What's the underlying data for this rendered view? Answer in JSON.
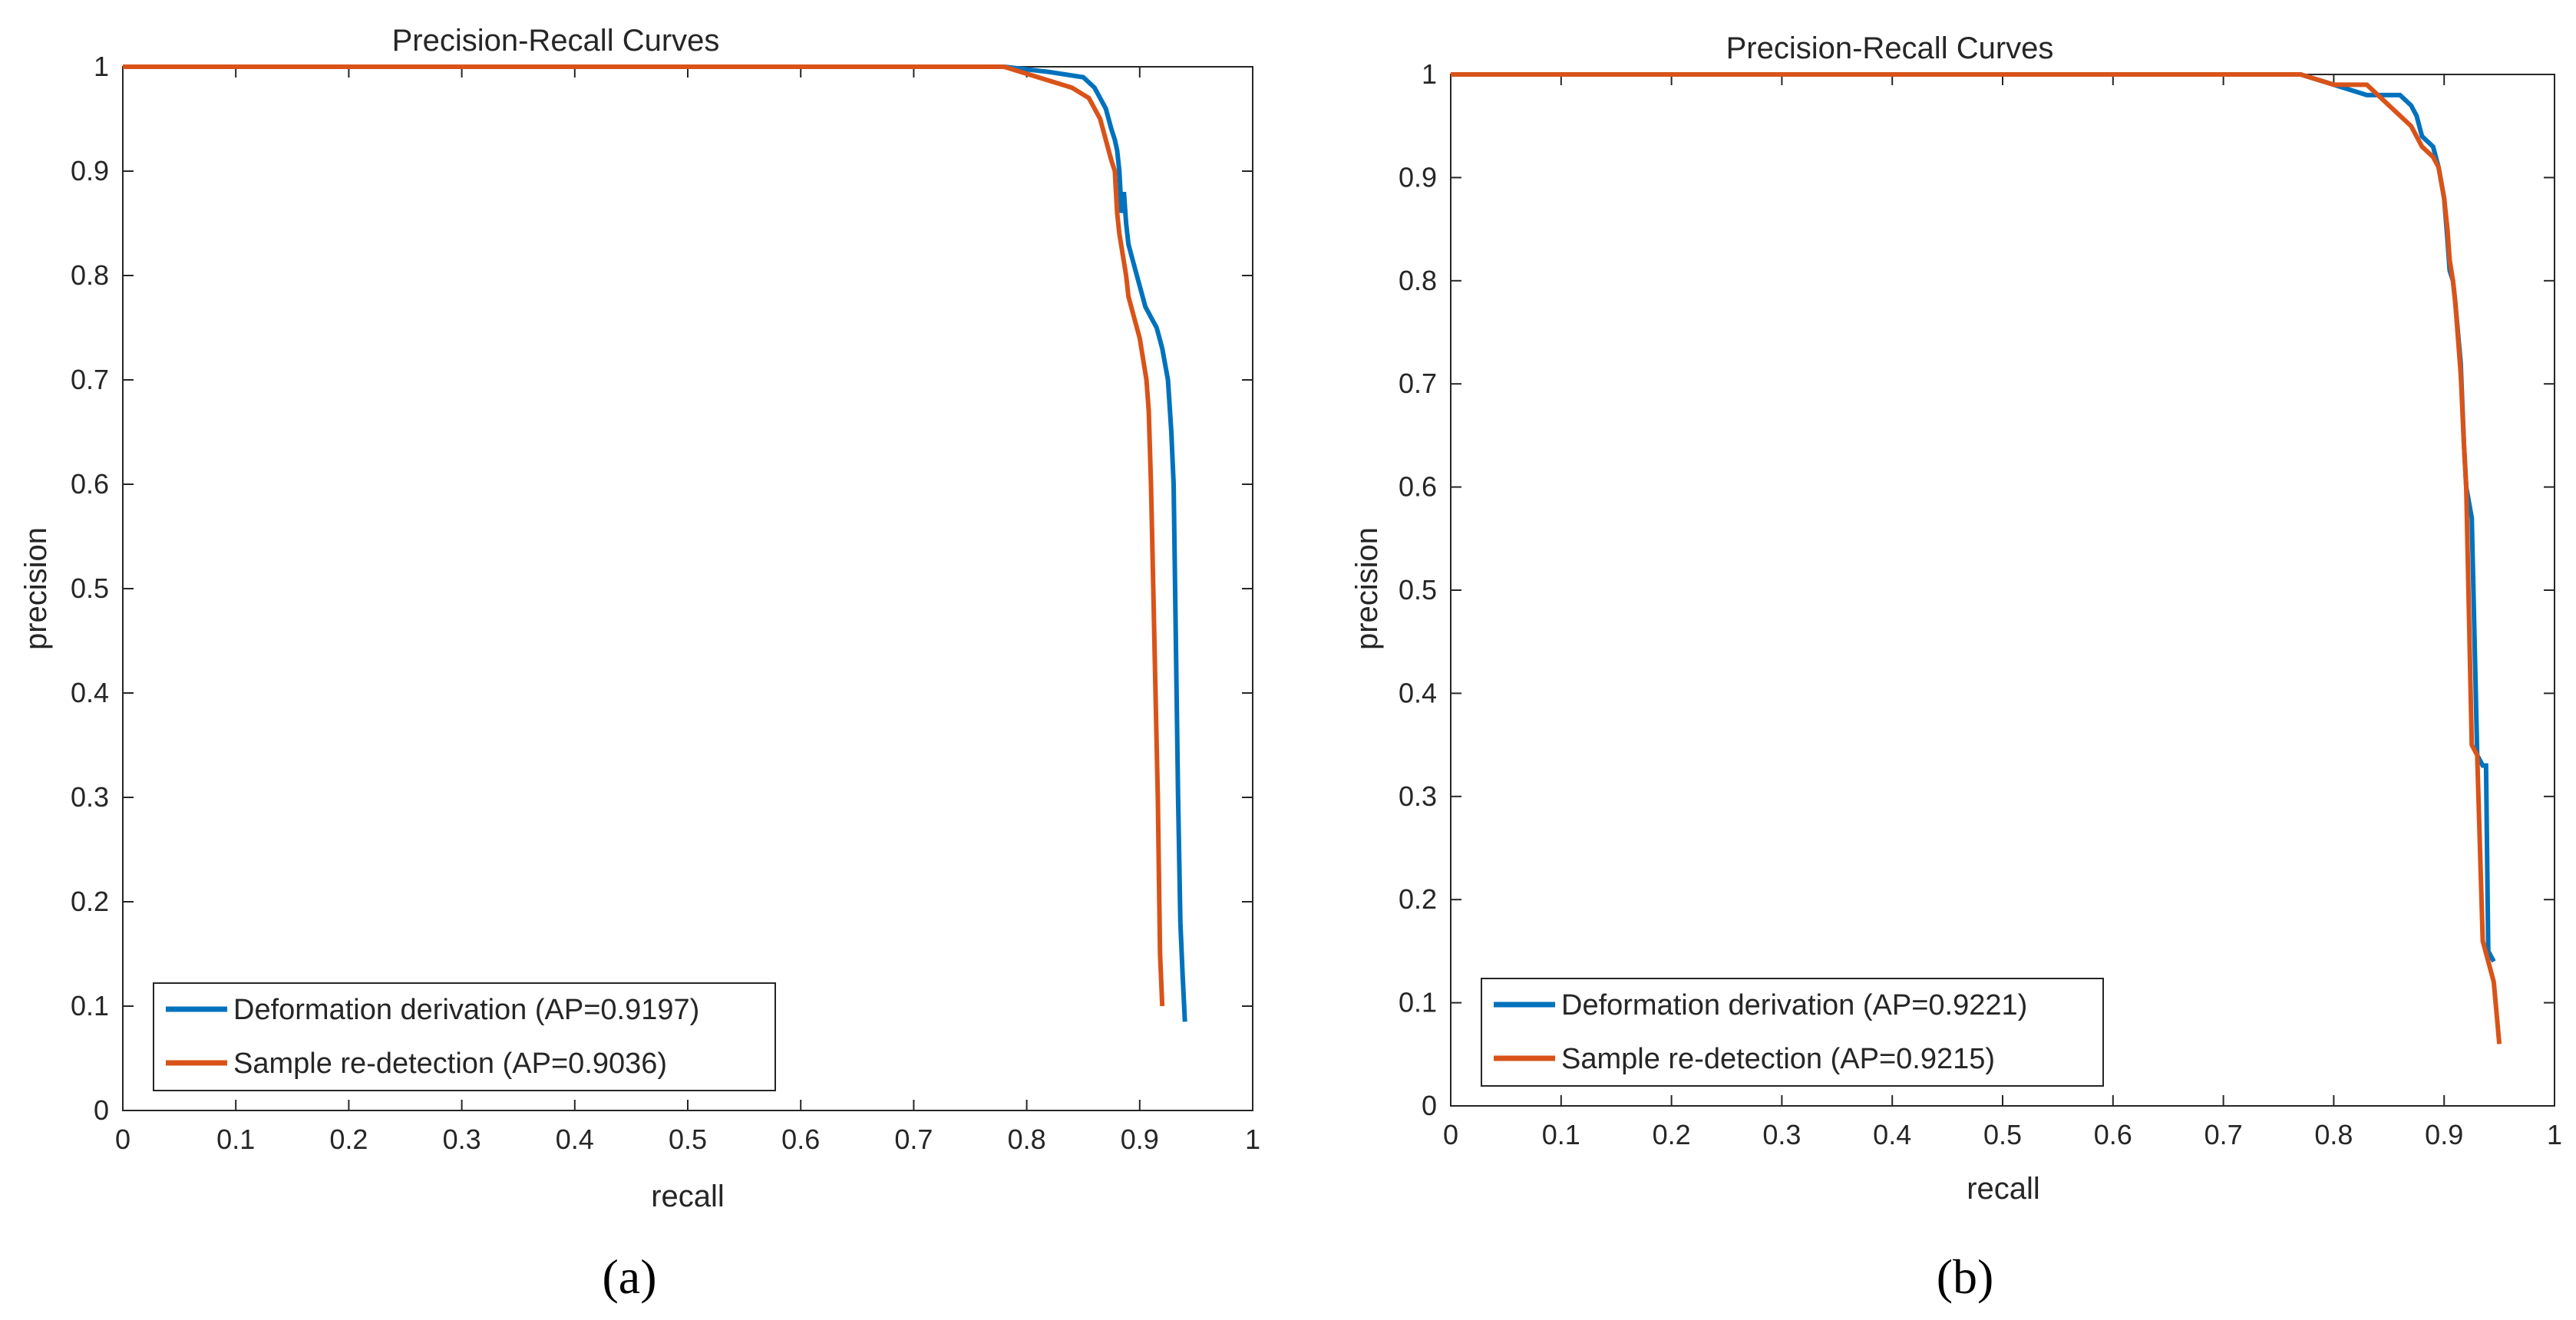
{
  "chart_data": [
    {
      "type": "line",
      "panel_caption": "(a)",
      "title": "Precision-Recall Curves",
      "xlabel": "recall",
      "ylabel": "precision",
      "xlim": [
        0,
        1
      ],
      "ylim": [
        0,
        1
      ],
      "xticks": [
        "0",
        "0.1",
        "0.2",
        "0.3",
        "0.4",
        "0.5",
        "0.6",
        "0.7",
        "0.8",
        "0.9",
        "1"
      ],
      "yticks": [
        "0",
        "0.1",
        "0.2",
        "0.3",
        "0.4",
        "0.5",
        "0.6",
        "0.7",
        "0.8",
        "0.9",
        "1"
      ],
      "grid": false,
      "legend_position": "bottom-left",
      "series": [
        {
          "name": "Deformation derivation (AP=0.9197)",
          "color": "#0072BD",
          "x": [
            0,
            0.78,
            0.82,
            0.85,
            0.86,
            0.87,
            0.875,
            0.878,
            0.88,
            0.882,
            0.884,
            0.886,
            0.888,
            0.89,
            0.895,
            0.9,
            0.905,
            0.91,
            0.915,
            0.92,
            0.925,
            0.928,
            0.93,
            0.932,
            0.934,
            0.936,
            0.938,
            0.94
          ],
          "y": [
            1.0,
            1.0,
            0.995,
            0.99,
            0.98,
            0.96,
            0.94,
            0.93,
            0.92,
            0.9,
            0.86,
            0.88,
            0.85,
            0.83,
            0.81,
            0.79,
            0.77,
            0.76,
            0.75,
            0.73,
            0.7,
            0.65,
            0.6,
            0.45,
            0.3,
            0.18,
            0.13,
            0.085
          ]
        },
        {
          "name": "Sample re-detection (AP=0.9036)",
          "color": "#D95319",
          "x": [
            0,
            0.78,
            0.81,
            0.84,
            0.855,
            0.865,
            0.87,
            0.875,
            0.878,
            0.88,
            0.882,
            0.885,
            0.888,
            0.89,
            0.895,
            0.9,
            0.903,
            0.906,
            0.908,
            0.91,
            0.912,
            0.914,
            0.916,
            0.918,
            0.92
          ],
          "y": [
            1.0,
            1.0,
            0.99,
            0.98,
            0.97,
            0.95,
            0.93,
            0.91,
            0.9,
            0.86,
            0.84,
            0.82,
            0.8,
            0.78,
            0.76,
            0.74,
            0.72,
            0.7,
            0.67,
            0.6,
            0.5,
            0.4,
            0.3,
            0.15,
            0.1
          ]
        }
      ]
    },
    {
      "type": "line",
      "panel_caption": "(b)",
      "title": "Precision-Recall Curves",
      "xlabel": "recall",
      "ylabel": "precision",
      "xlim": [
        0,
        1
      ],
      "ylim": [
        0,
        1
      ],
      "xticks": [
        "0",
        "0.1",
        "0.2",
        "0.3",
        "0.4",
        "0.5",
        "0.6",
        "0.7",
        "0.8",
        "0.9",
        "1"
      ],
      "yticks": [
        "0",
        "0.1",
        "0.2",
        "0.3",
        "0.4",
        "0.5",
        "0.6",
        "0.7",
        "0.8",
        "0.9",
        "1"
      ],
      "grid": false,
      "legend_position": "bottom-left",
      "series": [
        {
          "name": "Deformation derivation (AP=0.9221)",
          "color": "#0072BD",
          "x": [
            0,
            0.77,
            0.8,
            0.83,
            0.84,
            0.86,
            0.87,
            0.875,
            0.88,
            0.89,
            0.895,
            0.9,
            0.903,
            0.905,
            0.908,
            0.91,
            0.915,
            0.918,
            0.92,
            0.925,
            0.93,
            0.935,
            0.938,
            0.94,
            0.945
          ],
          "y": [
            1.0,
            1.0,
            0.99,
            0.98,
            0.98,
            0.98,
            0.97,
            0.96,
            0.94,
            0.93,
            0.91,
            0.88,
            0.84,
            0.81,
            0.8,
            0.78,
            0.72,
            0.64,
            0.6,
            0.57,
            0.34,
            0.33,
            0.33,
            0.15,
            0.14
          ]
        },
        {
          "name": "Sample re-detection (AP=0.9215)",
          "color": "#D95319",
          "x": [
            0,
            0.77,
            0.8,
            0.83,
            0.85,
            0.87,
            0.875,
            0.88,
            0.89,
            0.895,
            0.9,
            0.903,
            0.905,
            0.908,
            0.91,
            0.915,
            0.918,
            0.92,
            0.925,
            0.93,
            0.935,
            0.94,
            0.945,
            0.95
          ],
          "y": [
            1.0,
            1.0,
            0.99,
            0.99,
            0.97,
            0.95,
            0.94,
            0.93,
            0.92,
            0.91,
            0.88,
            0.85,
            0.82,
            0.8,
            0.78,
            0.71,
            0.64,
            0.6,
            0.35,
            0.34,
            0.16,
            0.14,
            0.12,
            0.06
          ]
        }
      ]
    }
  ]
}
